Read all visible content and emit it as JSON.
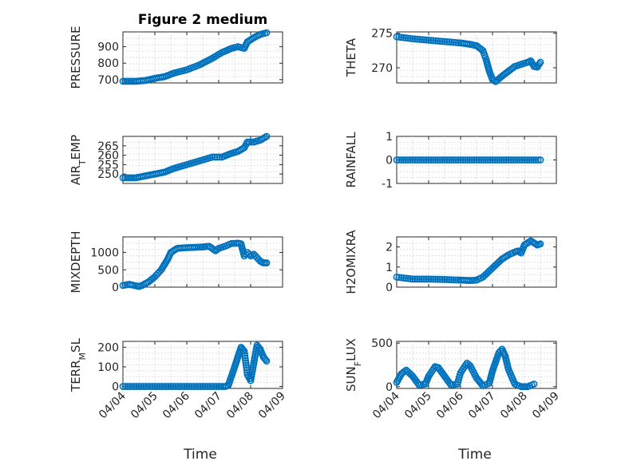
{
  "figure": {
    "xlabel": "Time",
    "marker_color": "#0072BD",
    "xticks": [
      "04/04",
      "04/05",
      "04/06",
      "04/07",
      "04/08",
      "04/09"
    ]
  },
  "chart_data": [
    {
      "type": "scatter",
      "title": "Figure 2 medium",
      "ylabel": "PRESSURE",
      "ylim": [
        680,
        990
      ],
      "yticks": [
        700,
        800,
        900
      ],
      "xlim": [
        0,
        5
      ],
      "grid": true,
      "points": [
        [
          0,
          690
        ],
        [
          0.4,
          690
        ],
        [
          0.7,
          695
        ],
        [
          1.0,
          708
        ],
        [
          1.3,
          718
        ],
        [
          1.6,
          740
        ],
        [
          2.0,
          760
        ],
        [
          2.4,
          790
        ],
        [
          2.8,
          830
        ],
        [
          3.1,
          865
        ],
        [
          3.4,
          890
        ],
        [
          3.6,
          900
        ],
        [
          3.8,
          890
        ],
        [
          3.9,
          930
        ],
        [
          4.1,
          955
        ],
        [
          4.3,
          975
        ],
        [
          4.5,
          985
        ]
      ]
    },
    {
      "type": "scatter",
      "title": "",
      "ylabel": "THETA",
      "ylim": [
        267.8,
        275.2
      ],
      "yticks": [
        270,
        275
      ],
      "xlim": [
        0,
        5
      ],
      "grid": true,
      "points": [
        [
          0,
          274.5
        ],
        [
          0.5,
          274.2
        ],
        [
          1.0,
          274.0
        ],
        [
          1.5,
          273.8
        ],
        [
          2.0,
          273.6
        ],
        [
          2.3,
          273.4
        ],
        [
          2.5,
          273.2
        ],
        [
          2.7,
          272.5
        ],
        [
          2.8,
          271.2
        ],
        [
          2.9,
          269.5
        ],
        [
          3.0,
          268.3
        ],
        [
          3.1,
          268.0
        ],
        [
          3.3,
          268.8
        ],
        [
          3.5,
          269.5
        ],
        [
          3.7,
          270.2
        ],
        [
          3.9,
          270.5
        ],
        [
          4.1,
          270.8
        ],
        [
          4.2,
          271.0
        ],
        [
          4.3,
          270.2
        ],
        [
          4.4,
          270.1
        ],
        [
          4.5,
          270.8
        ]
      ]
    },
    {
      "type": "scatter",
      "title": "",
      "ylabel": "AIR_TEMP",
      "ylim": [
        245,
        270
      ],
      "yticks": [
        250,
        255,
        260,
        265
      ],
      "xlim": [
        0,
        5
      ],
      "grid": true,
      "points": [
        [
          0,
          248
        ],
        [
          0.4,
          248
        ],
        [
          0.7,
          249
        ],
        [
          1.0,
          250
        ],
        [
          1.3,
          251
        ],
        [
          1.6,
          253
        ],
        [
          2.0,
          255
        ],
        [
          2.4,
          257
        ],
        [
          2.8,
          259
        ],
        [
          3.1,
          259
        ],
        [
          3.4,
          261
        ],
        [
          3.6,
          262
        ],
        [
          3.8,
          264
        ],
        [
          3.9,
          267
        ],
        [
          4.1,
          267
        ],
        [
          4.3,
          268
        ],
        [
          4.5,
          270
        ]
      ]
    },
    {
      "type": "scatter",
      "title": "",
      "ylabel": "RAINFALL",
      "ylim": [
        -1,
        1
      ],
      "yticks": [
        -1,
        0,
        1
      ],
      "xlim": [
        0,
        5
      ],
      "grid": true,
      "points": [
        [
          0,
          0
        ],
        [
          0.5,
          0
        ],
        [
          1.0,
          0
        ],
        [
          1.5,
          0
        ],
        [
          2.0,
          0
        ],
        [
          2.5,
          0
        ],
        [
          3.0,
          0
        ],
        [
          3.5,
          0
        ],
        [
          4.0,
          0
        ],
        [
          4.5,
          0
        ]
      ]
    },
    {
      "type": "scatter",
      "title": "",
      "ylabel": "MIXDEPTH",
      "ylim": [
        0,
        1450
      ],
      "yticks": [
        0,
        500,
        1000
      ],
      "xlim": [
        0,
        5
      ],
      "grid": true,
      "points": [
        [
          0,
          50
        ],
        [
          0.2,
          80
        ],
        [
          0.3,
          60
        ],
        [
          0.5,
          20
        ],
        [
          0.6,
          50
        ],
        [
          0.8,
          150
        ],
        [
          1.0,
          300
        ],
        [
          1.2,
          500
        ],
        [
          1.4,
          800
        ],
        [
          1.5,
          1000
        ],
        [
          1.7,
          1120
        ],
        [
          2.0,
          1140
        ],
        [
          2.3,
          1150
        ],
        [
          2.5,
          1160
        ],
        [
          2.7,
          1180
        ],
        [
          2.9,
          1050
        ],
        [
          3.0,
          1120
        ],
        [
          3.2,
          1180
        ],
        [
          3.4,
          1260
        ],
        [
          3.6,
          1270
        ],
        [
          3.7,
          1250
        ],
        [
          3.8,
          900
        ],
        [
          3.9,
          1000
        ],
        [
          4.0,
          900
        ],
        [
          4.1,
          950
        ],
        [
          4.2,
          850
        ],
        [
          4.3,
          750
        ],
        [
          4.4,
          700
        ],
        [
          4.5,
          700
        ]
      ]
    },
    {
      "type": "scatter",
      "title": "",
      "ylabel": "H2OMIXRA",
      "ylim": [
        0,
        2.5
      ],
      "yticks": [
        0,
        1,
        2
      ],
      "xlim": [
        0,
        5
      ],
      "grid": true,
      "points": [
        [
          0,
          0.5
        ],
        [
          0.5,
          0.4
        ],
        [
          1.0,
          0.4
        ],
        [
          1.5,
          0.38
        ],
        [
          2.0,
          0.35
        ],
        [
          2.3,
          0.33
        ],
        [
          2.5,
          0.35
        ],
        [
          2.7,
          0.5
        ],
        [
          2.9,
          0.8
        ],
        [
          3.1,
          1.1
        ],
        [
          3.3,
          1.4
        ],
        [
          3.5,
          1.6
        ],
        [
          3.7,
          1.75
        ],
        [
          3.8,
          1.8
        ],
        [
          3.9,
          1.7
        ],
        [
          4.0,
          2.1
        ],
        [
          4.1,
          2.2
        ],
        [
          4.2,
          2.3
        ],
        [
          4.3,
          2.2
        ],
        [
          4.4,
          2.1
        ],
        [
          4.5,
          2.15
        ]
      ]
    },
    {
      "type": "scatter",
      "title": "",
      "ylabel": "TERR_MSL",
      "ylim": [
        -10,
        230
      ],
      "yticks": [
        0,
        100,
        200
      ],
      "xlim": [
        0,
        5
      ],
      "grid": true,
      "points": [
        [
          0,
          0
        ],
        [
          0.5,
          0
        ],
        [
          1.0,
          0
        ],
        [
          1.5,
          0
        ],
        [
          2.0,
          0
        ],
        [
          2.5,
          0
        ],
        [
          3.0,
          0
        ],
        [
          3.2,
          0
        ],
        [
          3.3,
          5
        ],
        [
          3.5,
          100
        ],
        [
          3.6,
          150
        ],
        [
          3.7,
          200
        ],
        [
          3.8,
          180
        ],
        [
          3.9,
          60
        ],
        [
          4.0,
          30
        ],
        [
          4.1,
          120
        ],
        [
          4.2,
          210
        ],
        [
          4.3,
          190
        ],
        [
          4.4,
          150
        ],
        [
          4.5,
          130
        ]
      ]
    },
    {
      "type": "scatter",
      "title": "",
      "ylabel": "SUN_FLUX",
      "ylim": [
        -20,
        520
      ],
      "yticks": [
        0,
        500
      ],
      "xlim": [
        0,
        5
      ],
      "grid": true,
      "points": [
        [
          0,
          50
        ],
        [
          0.15,
          150
        ],
        [
          0.3,
          190
        ],
        [
          0.5,
          120
        ],
        [
          0.7,
          20
        ],
        [
          0.9,
          30
        ],
        [
          1.0,
          120
        ],
        [
          1.2,
          230
        ],
        [
          1.3,
          220
        ],
        [
          1.5,
          120
        ],
        [
          1.7,
          20
        ],
        [
          1.9,
          30
        ],
        [
          2.0,
          160
        ],
        [
          2.2,
          270
        ],
        [
          2.3,
          240
        ],
        [
          2.5,
          100
        ],
        [
          2.7,
          10
        ],
        [
          2.9,
          40
        ],
        [
          3.0,
          180
        ],
        [
          3.2,
          390
        ],
        [
          3.3,
          430
        ],
        [
          3.4,
          350
        ],
        [
          3.5,
          200
        ],
        [
          3.7,
          30
        ],
        [
          3.9,
          0
        ],
        [
          4.1,
          0
        ],
        [
          4.3,
          30
        ]
      ]
    }
  ]
}
